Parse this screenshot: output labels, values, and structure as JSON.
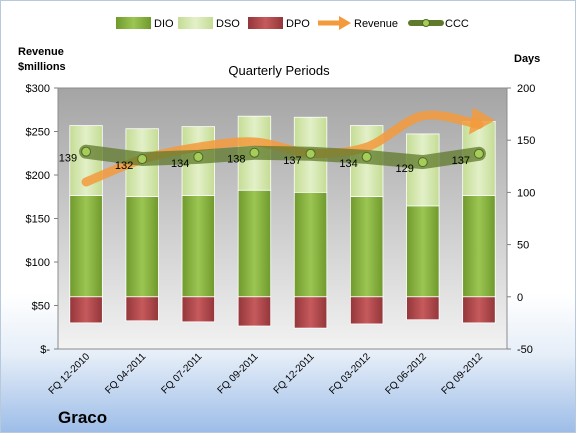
{
  "company": "Graco",
  "chart_data": {
    "type": "bar",
    "title": "Quarterly Periods",
    "left_axis": {
      "label": "Revenue $millions",
      "ylim": [
        0,
        300
      ],
      "ticks": [
        0,
        50,
        100,
        150,
        200,
        250,
        300
      ],
      "tick_labels": [
        "$-",
        "$50",
        "$100",
        "$150",
        "$200",
        "$250",
        "$300"
      ]
    },
    "right_axis": {
      "label": "Days",
      "ylim": [
        -50,
        200
      ],
      "ticks": [
        -50,
        0,
        50,
        100,
        150,
        200
      ],
      "tick_labels": [
        "-50",
        "0",
        "50",
        "100",
        "150",
        "200"
      ]
    },
    "categories": [
      "FQ 12-2010",
      "FQ 04-2011",
      "FQ 07-2011",
      "FQ 09-2011",
      "FQ 12-2011",
      "FQ 03-2012",
      "FQ 06-2012",
      "FQ 09-2012"
    ],
    "series": [
      {
        "name": "DIO",
        "axis": "right",
        "values": [
          97,
          96,
          97,
          102,
          100,
          96,
          87,
          97
        ]
      },
      {
        "name": "DSO",
        "axis": "right",
        "values": [
          67,
          65,
          66,
          71,
          72,
          68,
          69,
          71
        ]
      },
      {
        "name": "DPO",
        "axis": "right",
        "values": [
          -25,
          -23,
          -24,
          -28,
          -30,
          -26,
          -22,
          -25
        ]
      },
      {
        "name": "Revenue",
        "axis": "left",
        "values": [
          192,
          218,
          232,
          238,
          225,
          232,
          268,
          258
        ]
      },
      {
        "name": "CCC",
        "axis": "right",
        "values": [
          139,
          132,
          134,
          138,
          137,
          134,
          129,
          137
        ],
        "data_labels": [
          "139",
          "132",
          "134",
          "138",
          "137",
          "134",
          "129",
          "137"
        ]
      }
    ],
    "legend": {
      "position": "top",
      "items": [
        "DIO",
        "DSO",
        "DPO",
        "Revenue",
        "CCC"
      ]
    },
    "grid": false,
    "colors": {
      "DIO": "#8db843",
      "DSO": "#d4e8ad",
      "DPO": "#b44a4a",
      "Revenue": "#f39a3c",
      "CCC": "#5f7a2c"
    }
  }
}
